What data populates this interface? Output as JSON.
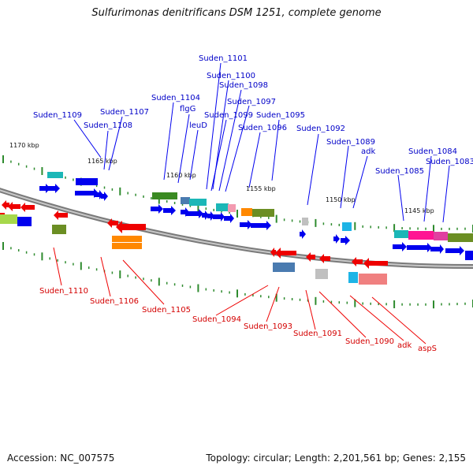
{
  "title": "Sulfurimonas denitrificans DSM 1251, complete genome",
  "footer": {
    "accession": "Accession: NC_007575",
    "stats": "Topology: circular; Length: 2,201,561 bp; Genes: 2,155"
  },
  "colors": {
    "forward_label": "#0000c8",
    "reverse_label": "#d40000",
    "backbone": "#888888",
    "tick": "#2e8b2e"
  },
  "kbp_marks": [
    "1170 kbp",
    "1165 kbp",
    "1160 kbp",
    "1155 kbp",
    "1150 kbp",
    "1145 kbp"
  ],
  "forward_labels": [
    "Suden_1101",
    "Suden_1100",
    "Suden_1098",
    "Suden_1104",
    "Suden_1097",
    "flgG",
    "Suden_1099",
    "Suden_1095",
    "Suden_1109",
    "Suden_1107",
    "Suden_1108",
    "leuD",
    "Suden_1096",
    "Suden_1092",
    "Suden_1089",
    "adk",
    "Suden_1084",
    "Suden_1083",
    "Suden_1085"
  ],
  "reverse_labels": [
    "Suden_1110",
    "Suden_1106",
    "Suden_1105",
    "Suden_1094",
    "Suden_1093",
    "Suden_1091",
    "Suden_1090",
    "adk",
    "aspS"
  ]
}
